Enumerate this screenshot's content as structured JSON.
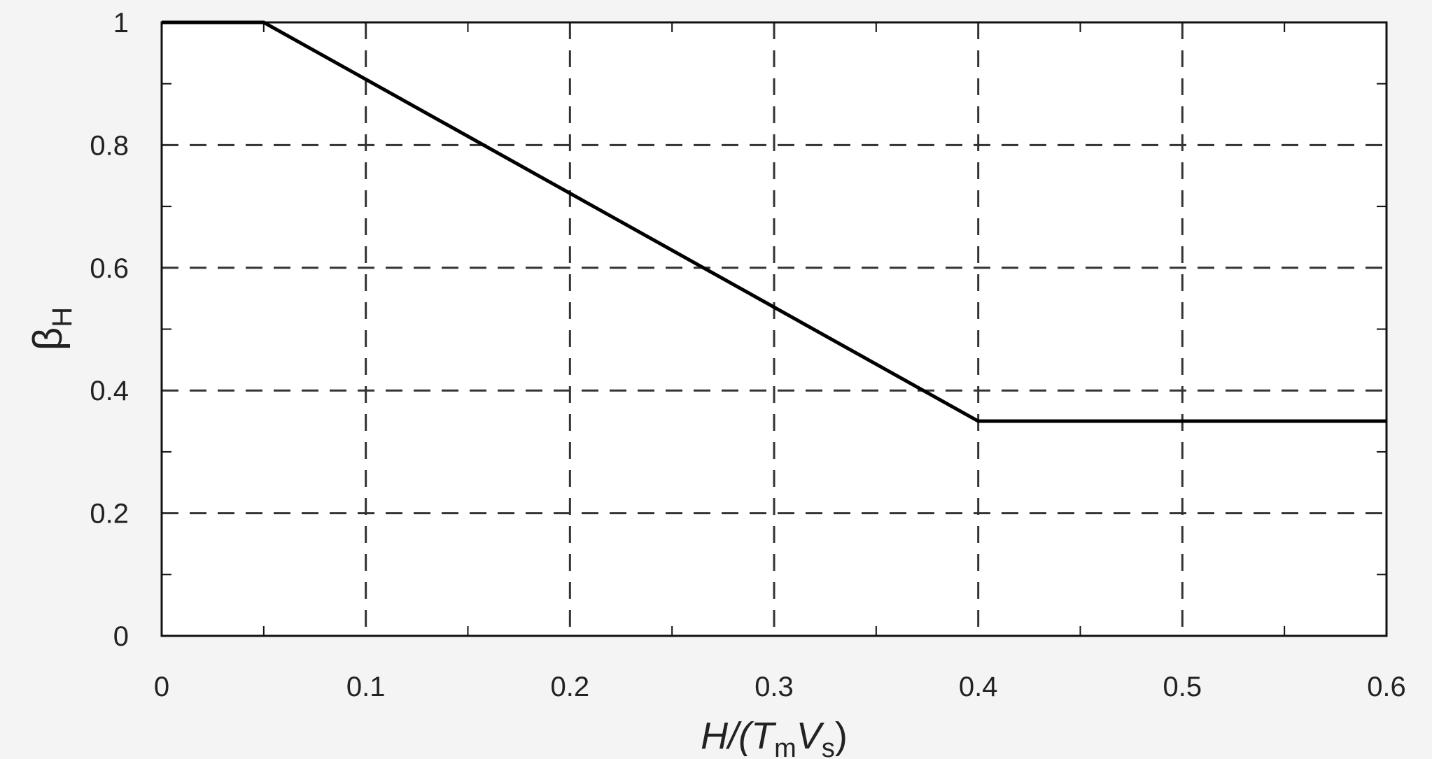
{
  "chart_data": {
    "type": "line",
    "xlabel": {
      "main": "H/(T",
      "sub1": "m",
      "mid": "V",
      "sub2": "s",
      "close": ")"
    },
    "ylabel": {
      "main": "β",
      "sub": "H"
    },
    "xlim": [
      0,
      0.6
    ],
    "ylim": [
      0,
      1
    ],
    "xticks": [
      0,
      0.1,
      0.2,
      0.3,
      0.4,
      0.5,
      0.6
    ],
    "xtick_labels": [
      "0",
      "0.1",
      "0.2",
      "0.3",
      "0.4",
      "0.5",
      "0.6"
    ],
    "yticks": [
      0,
      0.2,
      0.4,
      0.6,
      0.8,
      1
    ],
    "ytick_labels": [
      "0",
      "0.2",
      "0.4",
      "0.6",
      "0.8",
      "1"
    ],
    "grid": true,
    "series": [
      {
        "x": [
          0,
          0.05,
          0.4,
          0.6
        ],
        "y": [
          1,
          1,
          0.35,
          0.35
        ],
        "color": "#000000"
      }
    ]
  }
}
